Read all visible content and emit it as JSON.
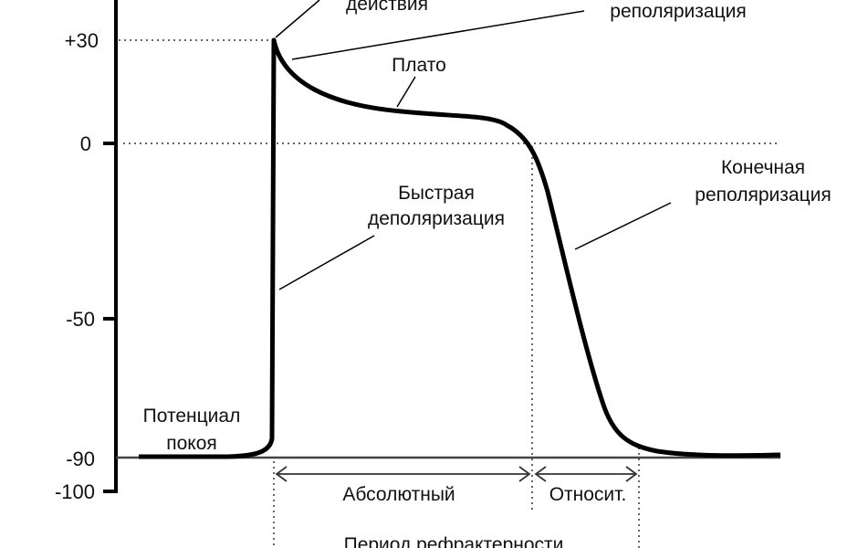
{
  "axis": {
    "ticks": [
      {
        "label": "+30",
        "value": 30
      },
      {
        "label": "0",
        "value": 0
      },
      {
        "label": "-50",
        "value": -50
      },
      {
        "label": "-90",
        "value": -90
      },
      {
        "label": "-100",
        "value": -100
      }
    ]
  },
  "labels": {
    "action_potential": "действия",
    "early_repolarization": "реполяризация",
    "plateau": "Плато",
    "fast_depol_1": "Быстрая",
    "fast_depol_2": "деполяризация",
    "final_repol_1": "Конечная",
    "final_repol_2": "реполяризация",
    "resting_1": "Потенциал",
    "resting_2": "покоя",
    "absolute": "Абсолютный",
    "relative": "Относит.",
    "refractory": "Период рефрактерности"
  },
  "colors": {
    "curve": "#000000",
    "baseline": "#444444"
  }
}
